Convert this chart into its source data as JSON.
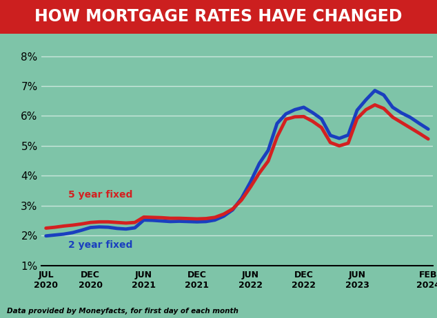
{
  "title": "HOW MORTGAGE RATES HAVE CHANGED",
  "title_bg_color": "#cc1f1f",
  "title_text_color": "#ffffff",
  "subtitle": "Data provided by Moneyfacts, for first day of each month",
  "bg_color": "#7ec4a8",
  "plot_bg_color": "#7ec4a8",
  "line_2yr_color": "#1a3fbf",
  "line_5yr_color": "#d42020",
  "label_2yr": "2 year fixed",
  "label_5yr": "5 year fixed",
  "ylim": [
    1.0,
    8.6
  ],
  "yticks": [
    1,
    2,
    3,
    4,
    5,
    6,
    7,
    8
  ],
  "xtick_labels": [
    "JUL\n2020",
    "DEC\n2020",
    "JUN\n2021",
    "DEC\n2021",
    "JUN\n2022",
    "DEC\n2022",
    "JUN\n2023",
    "FEB\n2024"
  ],
  "vals_2yr": [
    1.99,
    2.02,
    2.05,
    2.1,
    2.18,
    2.27,
    2.29,
    2.28,
    2.24,
    2.22,
    2.26,
    2.52,
    2.51,
    2.49,
    2.47,
    2.48,
    2.47,
    2.46,
    2.47,
    2.52,
    2.65,
    2.86,
    3.25,
    3.79,
    4.41,
    4.85,
    5.75,
    6.07,
    6.21,
    6.29,
    6.11,
    5.9,
    5.35,
    5.25,
    5.36,
    6.19,
    6.54,
    6.85,
    6.7,
    6.29,
    6.1,
    5.95,
    5.75,
    5.56
  ],
  "vals_5yr": [
    2.25,
    2.28,
    2.32,
    2.35,
    2.39,
    2.44,
    2.46,
    2.46,
    2.44,
    2.42,
    2.44,
    2.62,
    2.61,
    2.6,
    2.58,
    2.58,
    2.57,
    2.56,
    2.57,
    2.61,
    2.72,
    2.89,
    3.19,
    3.62,
    4.09,
    4.49,
    5.3,
    5.89,
    5.97,
    5.98,
    5.82,
    5.61,
    5.11,
    5.0,
    5.09,
    5.91,
    6.21,
    6.37,
    6.25,
    5.96,
    5.78,
    5.6,
    5.42,
    5.23
  ]
}
